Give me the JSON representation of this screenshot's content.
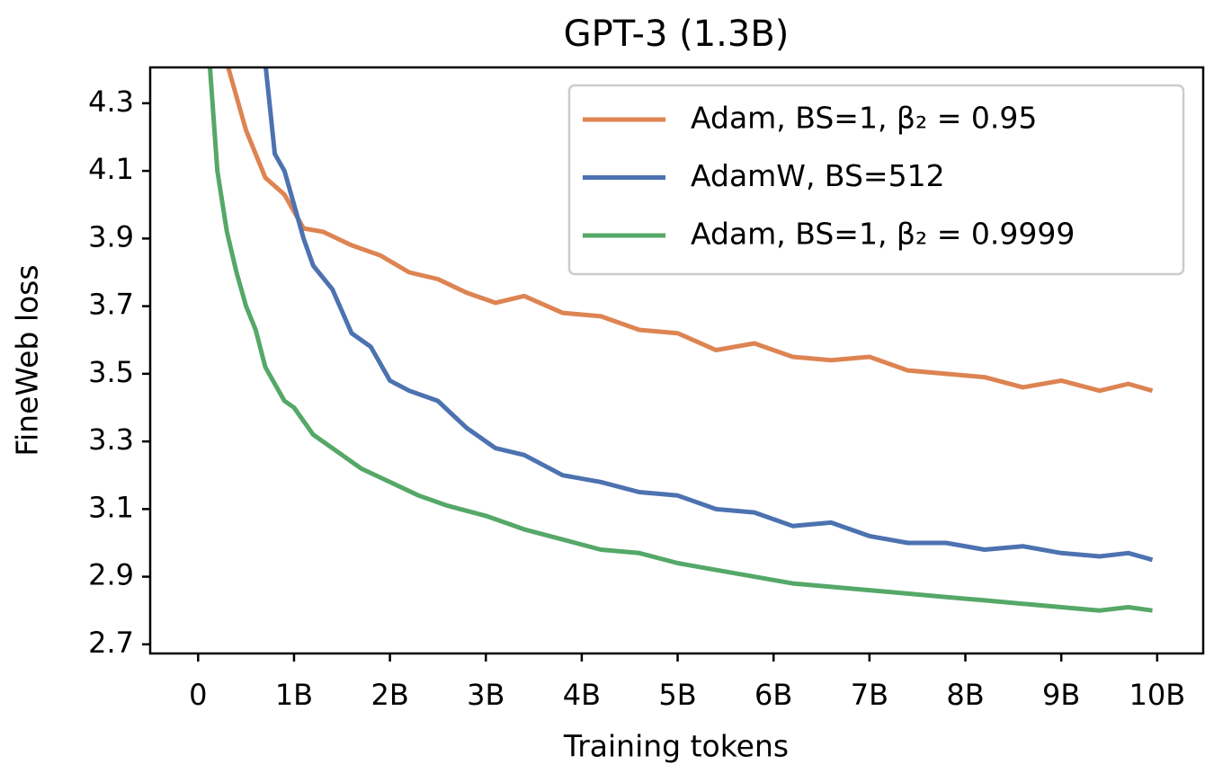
{
  "chart_data": {
    "type": "line",
    "title": "GPT-3 (1.3B)",
    "x_label": "Training tokens",
    "y_label": "FineWeb loss",
    "xlim": [
      -500000000,
      10480000000
    ],
    "ylim": [
      2.673,
      4.406
    ],
    "xticks": [
      0,
      {
        "value": 1000000000,
        "label": "1B"
      },
      {
        "value": 2000000000,
        "label": "2B"
      },
      {
        "value": 3000000000,
        "label": "3B"
      },
      {
        "value": 4000000000,
        "label": "4B"
      },
      {
        "value": 5000000000,
        "label": "5B"
      },
      {
        "value": 6000000000,
        "label": "6B"
      },
      {
        "value": 7000000000,
        "label": "7B"
      },
      {
        "value": 8000000000,
        "label": "8B"
      },
      {
        "value": 9000000000,
        "label": "9B"
      },
      {
        "value": 10000000000,
        "label": "10B"
      }
    ],
    "yticks": [
      2.7,
      2.9,
      3.1,
      3.3,
      3.5,
      3.7,
      3.9,
      4.1,
      4.3
    ],
    "legend": "upper right",
    "grid": false,
    "series": [
      {
        "name": "Adam, BS=1, β₂ = 0.95",
        "color": "#dd8452",
        "x": [
          300000000,
          500000000,
          700000000,
          900000000,
          1100000000,
          1300000000,
          1600000000,
          1900000000,
          2200000000,
          2500000000,
          2800000000,
          3100000000,
          3400000000,
          3800000000,
          4200000000,
          4600000000,
          5000000000,
          5400000000,
          5800000000,
          6200000000,
          6600000000,
          7000000000,
          7400000000,
          7800000000,
          8200000000,
          8600000000,
          9000000000,
          9400000000,
          9700000000,
          9950000000
        ],
        "values": [
          4.42,
          4.22,
          4.08,
          4.03,
          3.93,
          3.92,
          3.88,
          3.85,
          3.8,
          3.78,
          3.74,
          3.71,
          3.73,
          3.68,
          3.67,
          3.63,
          3.62,
          3.57,
          3.59,
          3.55,
          3.54,
          3.55,
          3.51,
          3.5,
          3.49,
          3.46,
          3.48,
          3.45,
          3.47,
          3.45
        ]
      },
      {
        "name": "AdamW, BS=512",
        "color": "#4c72b0",
        "x": [
          700000000,
          800000000,
          900000000,
          1000000000,
          1100000000,
          1200000000,
          1400000000,
          1600000000,
          1800000000,
          2000000000,
          2200000000,
          2500000000,
          2800000000,
          3100000000,
          3400000000,
          3800000000,
          4200000000,
          4600000000,
          5000000000,
          5400000000,
          5800000000,
          6200000000,
          6600000000,
          7000000000,
          7400000000,
          7800000000,
          8200000000,
          8600000000,
          9000000000,
          9400000000,
          9700000000,
          9950000000
        ],
        "values": [
          4.42,
          4.15,
          4.1,
          4.0,
          3.9,
          3.82,
          3.75,
          3.62,
          3.58,
          3.48,
          3.45,
          3.42,
          3.34,
          3.28,
          3.26,
          3.2,
          3.18,
          3.15,
          3.14,
          3.1,
          3.09,
          3.05,
          3.06,
          3.02,
          3.0,
          3.0,
          2.98,
          2.99,
          2.97,
          2.96,
          2.97,
          2.95
        ]
      },
      {
        "name": "Adam, BS=1, β₂ = 0.9999",
        "color": "#55a868",
        "x": [
          120000000,
          200000000,
          300000000,
          400000000,
          500000000,
          600000000,
          700000000,
          800000000,
          900000000,
          1000000000,
          1200000000,
          1400000000,
          1700000000,
          2000000000,
          2300000000,
          2600000000,
          3000000000,
          3400000000,
          3800000000,
          4200000000,
          4600000000,
          5000000000,
          5400000000,
          5800000000,
          6200000000,
          6600000000,
          7000000000,
          7400000000,
          7800000000,
          8200000000,
          8600000000,
          9000000000,
          9400000000,
          9700000000,
          9950000000
        ],
        "values": [
          4.42,
          4.1,
          3.92,
          3.8,
          3.7,
          3.63,
          3.52,
          3.47,
          3.42,
          3.4,
          3.32,
          3.28,
          3.22,
          3.18,
          3.14,
          3.11,
          3.08,
          3.04,
          3.01,
          2.98,
          2.97,
          2.94,
          2.92,
          2.9,
          2.88,
          2.87,
          2.86,
          2.85,
          2.84,
          2.83,
          2.82,
          2.81,
          2.8,
          2.81,
          2.8
        ]
      }
    ]
  }
}
